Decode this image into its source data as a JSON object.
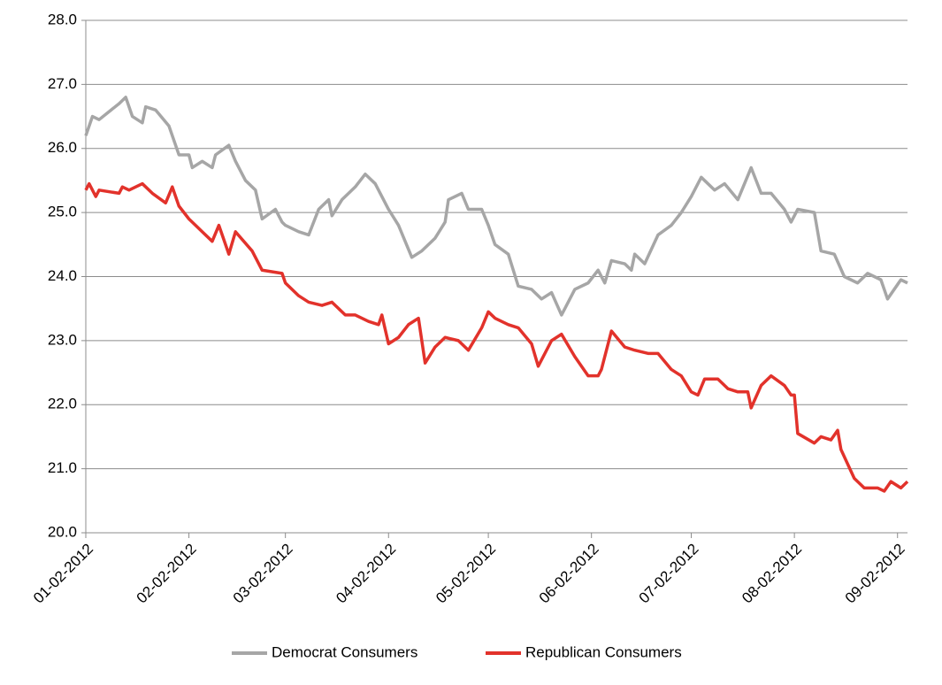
{
  "chart_data": {
    "type": "line",
    "xlim": [
      "2012-01-02",
      "2012-09-05"
    ],
    "xticks": [
      {
        "value": "2012-01-02",
        "label": "01-02-2012"
      },
      {
        "value": "2012-02-02",
        "label": "02-02-2012"
      },
      {
        "value": "2012-03-02",
        "label": "03-02-2012"
      },
      {
        "value": "2012-04-02",
        "label": "04-02-2012"
      },
      {
        "value": "2012-05-02",
        "label": "05-02-2012"
      },
      {
        "value": "2012-06-02",
        "label": "06-02-2012"
      },
      {
        "value": "2012-07-02",
        "label": "07-02-2012"
      },
      {
        "value": "2012-08-02",
        "label": "08-02-2012"
      },
      {
        "value": "2012-09-02",
        "label": "09-02-2012"
      }
    ],
    "ylim": [
      20,
      28
    ],
    "yticks": [
      {
        "value": 20,
        "label": "20.0"
      },
      {
        "value": 21,
        "label": "21.0"
      },
      {
        "value": 22,
        "label": "22.0"
      },
      {
        "value": 23,
        "label": "23.0"
      },
      {
        "value": 24,
        "label": "24.0"
      },
      {
        "value": 25,
        "label": "25.0"
      },
      {
        "value": 26,
        "label": "26.0"
      },
      {
        "value": 27,
        "label": "27.0"
      },
      {
        "value": 28,
        "label": "28.0"
      }
    ],
    "grid": true,
    "legend": "bottom",
    "series": [
      {
        "name": "Democrat Consumers",
        "color": "#a6a6a6",
        "x": [
          "2012-01-02",
          "2012-01-04",
          "2012-01-06",
          "2012-01-12",
          "2012-01-14",
          "2012-01-16",
          "2012-01-19",
          "2012-01-20",
          "2012-01-23",
          "2012-01-27",
          "2012-01-30",
          "2012-02-02",
          "2012-02-03",
          "2012-02-06",
          "2012-02-09",
          "2012-02-10",
          "2012-02-14",
          "2012-02-16",
          "2012-02-19",
          "2012-02-22",
          "2012-02-24",
          "2012-02-28",
          "2012-03-01",
          "2012-03-02",
          "2012-03-06",
          "2012-03-09",
          "2012-03-12",
          "2012-03-15",
          "2012-03-16",
          "2012-03-19",
          "2012-03-23",
          "2012-03-26",
          "2012-03-29",
          "2012-04-02",
          "2012-04-05",
          "2012-04-09",
          "2012-04-12",
          "2012-04-16",
          "2012-04-19",
          "2012-04-20",
          "2012-04-24",
          "2012-04-26",
          "2012-04-30",
          "2012-05-02",
          "2012-05-04",
          "2012-05-08",
          "2012-05-11",
          "2012-05-15",
          "2012-05-18",
          "2012-05-21",
          "2012-05-24",
          "2012-05-28",
          "2012-06-01",
          "2012-06-04",
          "2012-06-06",
          "2012-06-08",
          "2012-06-12",
          "2012-06-14",
          "2012-06-15",
          "2012-06-18",
          "2012-06-22",
          "2012-06-26",
          "2012-06-29",
          "2012-07-02",
          "2012-07-05",
          "2012-07-09",
          "2012-07-12",
          "2012-07-16",
          "2012-07-20",
          "2012-07-23",
          "2012-07-26",
          "2012-07-30",
          "2012-08-01",
          "2012-08-03",
          "2012-08-08",
          "2012-08-10",
          "2012-08-14",
          "2012-08-17",
          "2012-08-21",
          "2012-08-24",
          "2012-08-28",
          "2012-08-30",
          "2012-09-03",
          "2012-09-05"
        ],
        "values": [
          26.2,
          26.5,
          26.45,
          26.7,
          26.8,
          26.5,
          26.4,
          26.65,
          26.6,
          26.35,
          25.9,
          25.9,
          25.7,
          25.8,
          25.7,
          25.9,
          26.05,
          25.8,
          25.5,
          25.35,
          24.9,
          25.05,
          24.85,
          24.8,
          24.7,
          24.65,
          25.05,
          25.2,
          24.95,
          25.2,
          25.4,
          25.6,
          25.45,
          25.05,
          24.8,
          24.3,
          24.4,
          24.6,
          24.85,
          25.2,
          25.3,
          25.05,
          25.05,
          24.8,
          24.5,
          24.35,
          23.85,
          23.8,
          23.65,
          23.75,
          23.4,
          23.8,
          23.9,
          24.1,
          23.9,
          24.25,
          24.2,
          24.1,
          24.35,
          24.2,
          24.65,
          24.8,
          25.0,
          25.25,
          25.55,
          25.35,
          25.45,
          25.2,
          25.7,
          25.3,
          25.3,
          25.05,
          24.85,
          25.05,
          25.0,
          24.4,
          24.35,
          24.0,
          23.9,
          24.05,
          23.95,
          23.65,
          23.95,
          23.9
        ]
      },
      {
        "name": "Republican Consumers",
        "color": "#e2322b",
        "x": [
          "2012-01-02",
          "2012-01-03",
          "2012-01-05",
          "2012-01-06",
          "2012-01-12",
          "2012-01-13",
          "2012-01-15",
          "2012-01-19",
          "2012-01-22",
          "2012-01-26",
          "2012-01-28",
          "2012-01-30",
          "2012-02-02",
          "2012-02-06",
          "2012-02-09",
          "2012-02-11",
          "2012-02-14",
          "2012-02-16",
          "2012-02-21",
          "2012-02-24",
          "2012-03-01",
          "2012-03-02",
          "2012-03-06",
          "2012-03-09",
          "2012-03-13",
          "2012-03-16",
          "2012-03-20",
          "2012-03-23",
          "2012-03-27",
          "2012-03-30",
          "2012-03-31",
          "2012-04-02",
          "2012-04-05",
          "2012-04-08",
          "2012-04-11",
          "2012-04-13",
          "2012-04-16",
          "2012-04-19",
          "2012-04-23",
          "2012-04-26",
          "2012-04-30",
          "2012-05-02",
          "2012-05-04",
          "2012-05-08",
          "2012-05-11",
          "2012-05-15",
          "2012-05-17",
          "2012-05-21",
          "2012-05-24",
          "2012-05-28",
          "2012-06-01",
          "2012-06-04",
          "2012-06-05",
          "2012-06-08",
          "2012-06-12",
          "2012-06-15",
          "2012-06-19",
          "2012-06-22",
          "2012-06-26",
          "2012-06-29",
          "2012-07-02",
          "2012-07-04",
          "2012-07-06",
          "2012-07-10",
          "2012-07-13",
          "2012-07-16",
          "2012-07-19",
          "2012-07-20",
          "2012-07-23",
          "2012-07-26",
          "2012-07-30",
          "2012-08-01",
          "2012-08-02",
          "2012-08-03",
          "2012-08-08",
          "2012-08-10",
          "2012-08-13",
          "2012-08-15",
          "2012-08-16",
          "2012-08-20",
          "2012-08-23",
          "2012-08-27",
          "2012-08-29",
          "2012-08-31",
          "2012-09-03",
          "2012-09-05"
        ],
        "values": [
          25.35,
          25.45,
          25.25,
          25.35,
          25.3,
          25.4,
          25.35,
          25.45,
          25.3,
          25.15,
          25.4,
          25.1,
          24.9,
          24.7,
          24.55,
          24.8,
          24.35,
          24.7,
          24.4,
          24.1,
          24.05,
          23.9,
          23.7,
          23.6,
          23.55,
          23.6,
          23.4,
          23.4,
          23.3,
          23.25,
          23.4,
          22.95,
          23.05,
          23.25,
          23.35,
          22.65,
          22.9,
          23.05,
          23.0,
          22.85,
          23.2,
          23.45,
          23.35,
          23.25,
          23.2,
          22.95,
          22.6,
          23.0,
          23.1,
          22.75,
          22.45,
          22.45,
          22.55,
          23.15,
          22.9,
          22.85,
          22.8,
          22.8,
          22.55,
          22.45,
          22.2,
          22.15,
          22.4,
          22.4,
          22.25,
          22.2,
          22.2,
          21.95,
          22.3,
          22.45,
          22.3,
          22.15,
          22.15,
          21.55,
          21.4,
          21.5,
          21.45,
          21.6,
          21.3,
          20.85,
          20.7,
          20.7,
          20.65,
          20.8,
          20.7,
          20.8
        ]
      }
    ]
  }
}
